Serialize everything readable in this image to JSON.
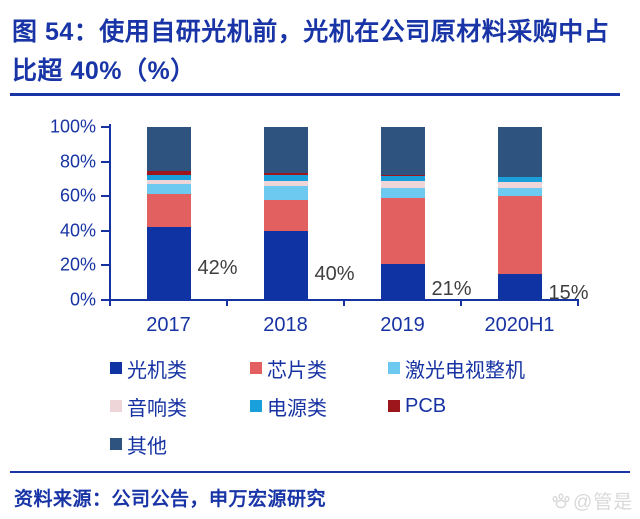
{
  "title": {
    "text": "图 54：使用自研光机前，光机在公司原材料采购中占比超 40%（%）"
  },
  "chart_data": {
    "type": "bar",
    "subtype": "stacked-percent",
    "categories": [
      "2017",
      "2018",
      "2019",
      "2020H1"
    ],
    "series": [
      {
        "name": "光机类",
        "color": "#0f33a2",
        "values": [
          42,
          40,
          21,
          15
        ]
      },
      {
        "name": "芯片类",
        "color": "#e2605f",
        "values": [
          19,
          18,
          38,
          45
        ]
      },
      {
        "name": "激光电视整机",
        "color": "#6ec9f1",
        "values": [
          6,
          8,
          6,
          4.5
        ]
      },
      {
        "name": "音响类",
        "color": "#eed6d8",
        "values": [
          2.5,
          3,
          3.5,
          3.5
        ]
      },
      {
        "name": "电源类",
        "color": "#199fd9",
        "values": [
          2.5,
          3.5,
          3,
          3
        ]
      },
      {
        "name": "PCB",
        "color": "#9c161b",
        "values": [
          2.5,
          1,
          1,
          0
        ]
      },
      {
        "name": "其他",
        "color": "#2e537e",
        "values": [
          25.5,
          26.5,
          27.5,
          29
        ]
      }
    ],
    "value_labels": [
      "42%",
      "40%",
      "21%",
      "15%"
    ],
    "y_ticks": [
      {
        "label": "100%",
        "value": 100
      },
      {
        "label": "80%",
        "value": 80
      },
      {
        "label": "60%",
        "value": 60
      },
      {
        "label": "40%",
        "value": 40
      },
      {
        "label": "20%",
        "value": 20
      },
      {
        "label": "0%",
        "value": 0
      }
    ],
    "ylim": [
      0,
      100
    ],
    "grid": false,
    "legend_position": "bottom"
  },
  "footer": {
    "source": "资料来源：公司公告，申万宏源研究"
  },
  "watermark": {
    "text": "@管是",
    "icon": "paw-icon"
  },
  "colors": {
    "title_blue": "#1834a6",
    "axis_blue": "#1733a3",
    "value_label_gray": "#3f3f3f",
    "watermark_gray": "#d9d9d9"
  }
}
